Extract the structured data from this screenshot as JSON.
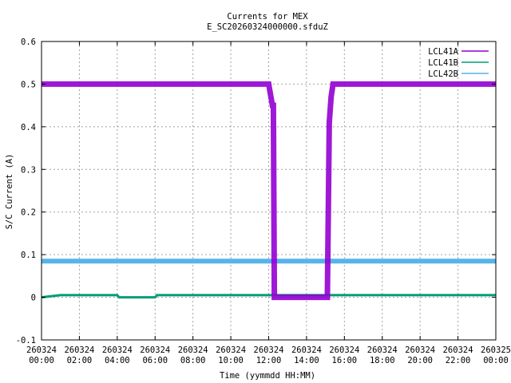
{
  "chart_data": {
    "type": "line",
    "title": "Currents for MEX",
    "subtitle": "E_SC20260324000000.sfduZ",
    "xlabel": "Time (yymmdd HH:MM)",
    "ylabel": "S/C Current (A)",
    "ylim": [
      -0.1,
      0.6
    ],
    "xlim_hours": [
      0,
      24
    ],
    "grid": true,
    "legend_position": "top-right",
    "y_ticks": [
      "-0.1",
      "0",
      "0.1",
      "0.2",
      "0.3",
      "0.4",
      "0.5",
      "0.6"
    ],
    "x_ticks": [
      {
        "date": "260324",
        "time": "00:00"
      },
      {
        "date": "260324",
        "time": "02:00"
      },
      {
        "date": "260324",
        "time": "04:00"
      },
      {
        "date": "260324",
        "time": "06:00"
      },
      {
        "date": "260324",
        "time": "08:00"
      },
      {
        "date": "260324",
        "time": "10:00"
      },
      {
        "date": "260324",
        "time": "12:00"
      },
      {
        "date": "260324",
        "time": "14:00"
      },
      {
        "date": "260324",
        "time": "16:00"
      },
      {
        "date": "260324",
        "time": "18:00"
      },
      {
        "date": "260324",
        "time": "20:00"
      },
      {
        "date": "260324",
        "time": "22:00"
      },
      {
        "date": "260325",
        "time": "00:00"
      }
    ],
    "series": [
      {
        "name": "LCL41A",
        "color": "#9400d3",
        "x_hours": [
          0,
          2,
          4,
          6,
          8,
          10,
          12,
          12.2,
          12.25,
          12.3,
          12.4,
          14,
          15.1,
          15.2,
          15.3,
          15.4,
          16,
          18,
          20,
          22,
          24
        ],
        "values": [
          0.5,
          0.5,
          0.5,
          0.5,
          0.5,
          0.5,
          0.5,
          0.45,
          0.45,
          0.0,
          0.0,
          0.0,
          0.0,
          0.41,
          0.47,
          0.5,
          0.5,
          0.5,
          0.5,
          0.5,
          0.5
        ]
      },
      {
        "name": "LCL41B",
        "color": "#009e73",
        "x_hours": [
          0,
          1,
          4,
          4.1,
          6,
          6.1,
          8,
          10,
          12,
          14,
          16,
          18,
          20,
          22,
          24
        ],
        "values": [
          0.0,
          0.005,
          0.005,
          0.0,
          0.0,
          0.005,
          0.005,
          0.005,
          0.005,
          0.005,
          0.005,
          0.005,
          0.005,
          0.005,
          0.005
        ]
      },
      {
        "name": "LCL42B",
        "color": "#56b4e9",
        "x_hours": [
          0,
          2,
          4,
          6,
          8,
          10,
          12,
          14,
          16,
          18,
          20,
          22,
          24
        ],
        "values": [
          0.085,
          0.085,
          0.085,
          0.085,
          0.085,
          0.085,
          0.085,
          0.085,
          0.085,
          0.085,
          0.085,
          0.085,
          0.085
        ]
      }
    ]
  }
}
